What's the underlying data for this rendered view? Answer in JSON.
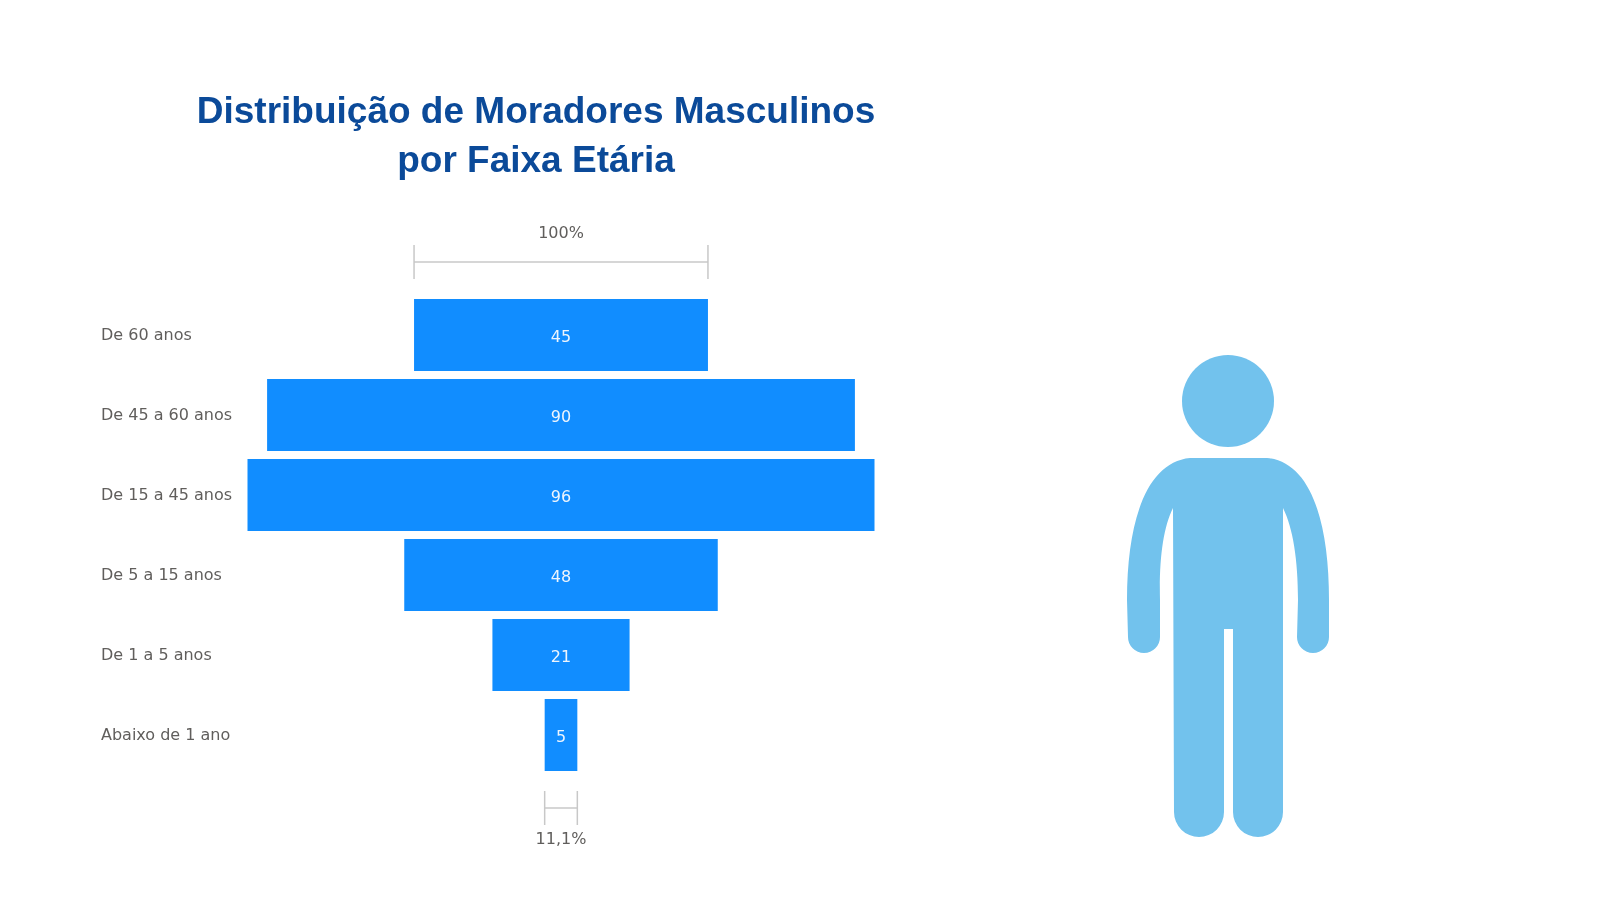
{
  "chart_data": {
    "type": "other",
    "title": "Distribuição de Moradores Masculinos por Faixa Etária",
    "categories": [
      "De 60 anos",
      "De 45 a 60 anos",
      "De 15 a 45 anos",
      "De 5 a 15 anos",
      "De 1 a 5 anos",
      "Abaixo de 1 ano"
    ],
    "values": [
      45,
      90,
      96,
      48,
      21,
      5
    ],
    "color": "#118dff",
    "data_labels": true,
    "annotations": [
      "100%",
      "11,1%"
    ]
  }
}
